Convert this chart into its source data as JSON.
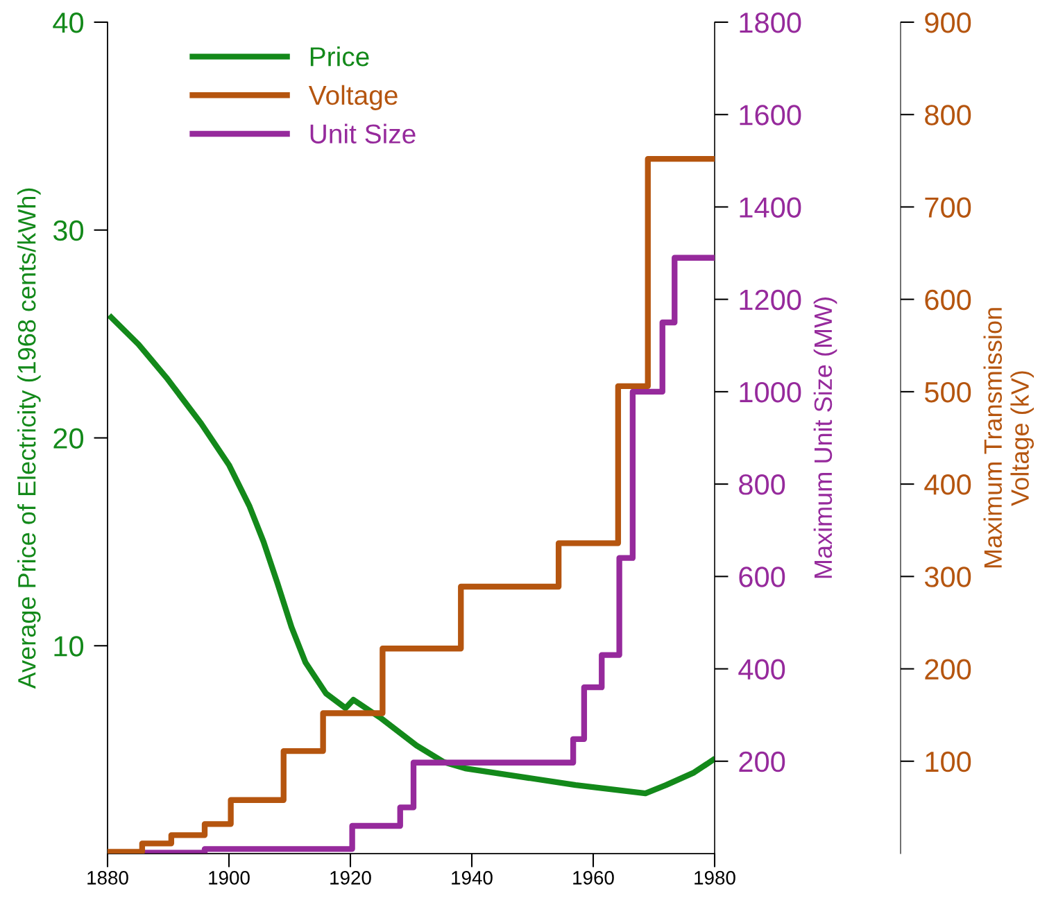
{
  "chart_data": {
    "type": "line",
    "ylabel": "Average Price of Electricity (1968 cents/kWh)",
    "y2label": "Maximum Unit Size (MW)",
    "y3label": "Maximum Transmission\nVoltage (kV)",
    "xlim": [
      1880,
      1980
    ],
    "xticks": [
      1880,
      1900,
      1920,
      1940,
      1960,
      1980
    ],
    "ylim": [
      0,
      40
    ],
    "yticks": [
      10,
      20,
      30,
      40
    ],
    "y2lim": [
      0,
      1800
    ],
    "y2ticks": [
      200,
      400,
      600,
      800,
      1000,
      1200,
      1400,
      1600,
      1800
    ],
    "y3lim": [
      0,
      900
    ],
    "y3ticks": [
      100,
      200,
      300,
      400,
      500,
      600,
      700,
      800,
      900
    ],
    "legend": "top left",
    "grid": false,
    "line_style": "solid",
    "marker": "none",
    "series": [
      {
        "name": "Price",
        "color": "#13891a",
        "x": [
          1880.6,
          1885.1,
          1889.7,
          1895.4,
          1900,
          1903.4,
          1905.7,
          1908,
          1910.3,
          1912.6,
          1916,
          1919.2,
          1920.5,
          1925.1,
          1930.9,
          1935.4,
          1938.9,
          1948,
          1957.1,
          1968.6,
          1972,
          1976.6,
          1979.7
        ],
        "values": [
          25.8,
          24.5,
          22.9,
          20.7,
          18.7,
          16.7,
          15.0,
          13.0,
          10.9,
          9.2,
          7.7,
          7.0,
          7.4,
          6.5,
          5.2,
          4.4,
          4.1,
          3.7,
          3.3,
          2.9,
          3.3,
          3.9,
          4.5
        ]
      },
      {
        "name": "Voltage",
        "type": "step",
        "axis": "y3",
        "color": "#b5550f",
        "x": [
          1880.3,
          1885.7,
          1890.5,
          1896,
          1900.3,
          1909,
          1915.5,
          1925.3,
          1938.2,
          1954.3,
          1964.1,
          1969,
          1979.7
        ],
        "values": [
          2,
          11,
          20,
          32,
          58,
          111,
          152,
          222,
          289,
          336,
          506,
          752,
          752
        ]
      },
      {
        "name": "Unit Size",
        "type": "step",
        "axis": "y2",
        "color": "#962a9c",
        "x": [
          1880.3,
          1896,
          1920.3,
          1928.2,
          1930.4,
          1956.7,
          1958.5,
          1961.4,
          1964.3,
          1966.5,
          1971.4,
          1973.4,
          1979.7
        ],
        "values": [
          2,
          10,
          60,
          100,
          197,
          248,
          360,
          430,
          640,
          1000,
          1150,
          1290,
          1290
        ]
      }
    ]
  }
}
